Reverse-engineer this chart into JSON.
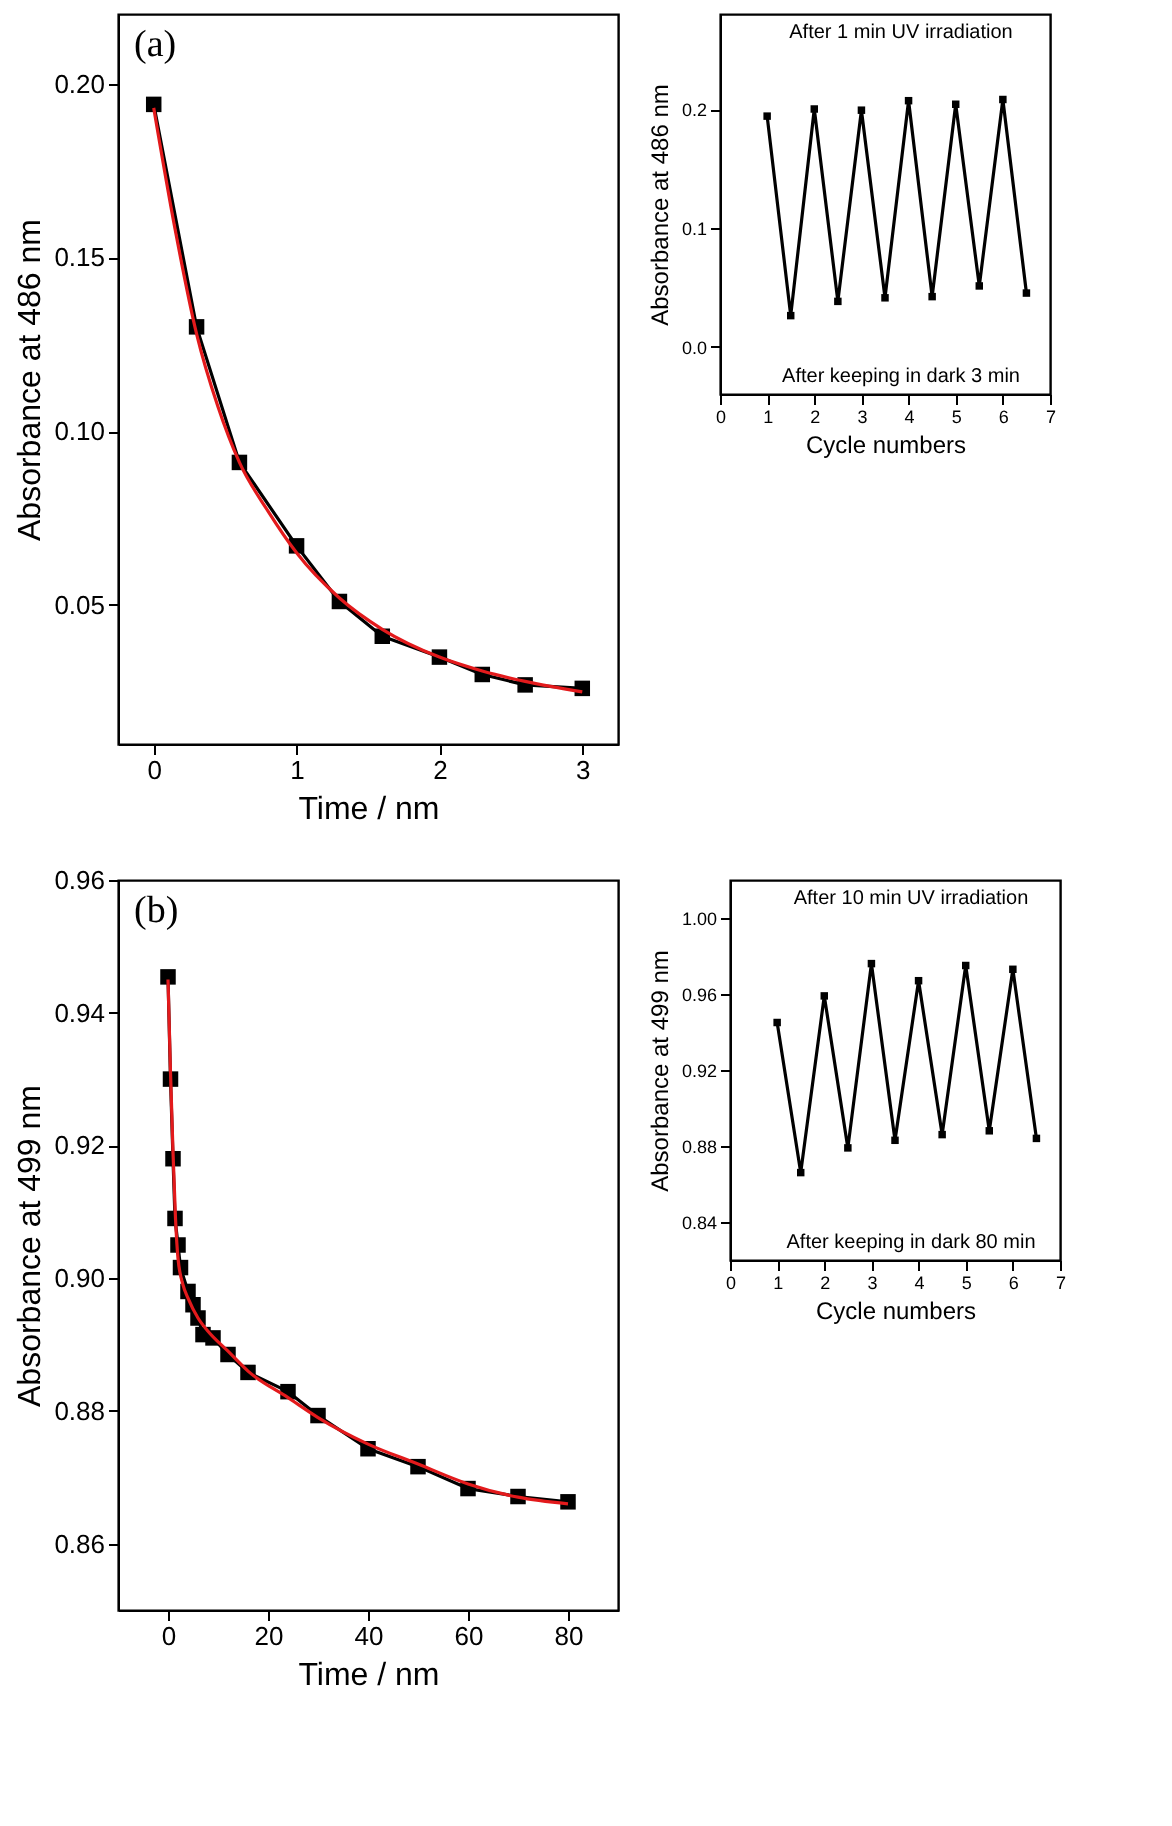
{
  "chart_data": [
    {
      "type": "line",
      "xlabel": "Time / nm",
      "ylabel": "Absorbance at 486 nm",
      "annotations": [
        "(a)"
      ],
      "xlim": [
        -0.25,
        3.25
      ],
      "ylim": [
        0.01,
        0.22
      ],
      "xticks": [
        0,
        1,
        2,
        3
      ],
      "yticks": [
        0.05,
        {
          "value": 0.1,
          "label": "0.10"
        },
        0.15,
        {
          "value": 0.2,
          "label": "0.20"
        }
      ],
      "grid": false,
      "series": [
        {
          "color": "#000000",
          "marker": "square",
          "x": [
            0,
            0.3,
            0.6,
            1.0,
            1.3,
            1.6,
            2.0,
            2.3,
            2.6,
            3.0
          ],
          "values": [
            0.194,
            0.13,
            0.091,
            0.067,
            0.051,
            0.041,
            0.035,
            0.03,
            0.027,
            0.026
          ]
        },
        {
          "color": "#e31a1c",
          "marker": "none",
          "x": [
            0,
            0.15,
            0.3,
            0.45,
            0.6,
            0.8,
            1.0,
            1.3,
            1.6,
            2.0,
            2.3,
            2.6,
            3.0
          ],
          "values": [
            0.193,
            0.158,
            0.128,
            0.107,
            0.091,
            0.077,
            0.065,
            0.052,
            0.043,
            0.035,
            0.031,
            0.028,
            0.025
          ]
        }
      ]
    },
    {
      "type": "line",
      "xlabel": "Cycle numbers",
      "ylabel": "Absorbance at 486 nm",
      "annotations": [
        "After 1 min UV irradiation",
        "After keeping in dark 3 min"
      ],
      "xlim": [
        0,
        7
      ],
      "ylim": [
        -0.04,
        0.28
      ],
      "xticks": [
        0,
        1,
        2,
        3,
        4,
        5,
        6,
        7
      ],
      "yticks": [
        {
          "value": 0,
          "label": "0.0"
        },
        0.1,
        0.2
      ],
      "grid": false,
      "series": [
        {
          "color": "#000000",
          "marker": "square",
          "x": [
            1,
            1.5,
            2,
            2.5,
            3,
            3.5,
            4,
            4.5,
            5,
            5.5,
            6,
            6.5
          ],
          "values": [
            0.194,
            0.026,
            0.2,
            0.038,
            0.199,
            0.041,
            0.207,
            0.042,
            0.204,
            0.051,
            0.208,
            0.045
          ]
        }
      ]
    },
    {
      "type": "line",
      "xlabel": "Time / nm",
      "ylabel": "Absorbance at 499 nm",
      "annotations": [
        "(b)"
      ],
      "xlim": [
        -10,
        90
      ],
      "ylim": [
        0.85,
        0.96
      ],
      "xticks": [
        0,
        20,
        40,
        60,
        80
      ],
      "yticks": [
        0.86,
        0.88,
        {
          "value": 0.9,
          "label": "0.90"
        },
        0.92,
        0.94,
        0.96
      ],
      "grid": false,
      "series": [
        {
          "color": "#000000",
          "marker": "square",
          "x": [
            0,
            0.5,
            1,
            1.4,
            2,
            2.5,
            4,
            5,
            6,
            7,
            9,
            12,
            16,
            24,
            30,
            40,
            50,
            60,
            70,
            80
          ],
          "values": [
            0.9454,
            0.93,
            0.918,
            0.909,
            0.905,
            0.9016,
            0.898,
            0.896,
            0.894,
            0.8915,
            0.891,
            0.8885,
            0.8858,
            0.8829,
            0.8793,
            0.8743,
            0.8716,
            0.8683,
            0.8671,
            0.8663
          ]
        },
        {
          "color": "#e31a1c",
          "marker": "none",
          "x": [
            0,
            0.5,
            1,
            1.5,
            2,
            3,
            4,
            6,
            8,
            12,
            16,
            24,
            30,
            40,
            50,
            60,
            70,
            80
          ],
          "values": [
            0.945,
            0.931,
            0.919,
            0.909,
            0.903,
            0.899,
            0.897,
            0.894,
            0.892,
            0.889,
            0.886,
            0.882,
            0.879,
            0.875,
            0.872,
            0.869,
            0.867,
            0.866
          ]
        }
      ]
    },
    {
      "type": "line",
      "xlabel": "Cycle numbers",
      "ylabel": "Absorbance at 499 nm",
      "annotations": [
        "After 10 min UV irradiation",
        "After keeping in dark 80 min"
      ],
      "xlim": [
        0,
        7
      ],
      "ylim": [
        0.82,
        1.02
      ],
      "xticks": [
        0,
        1,
        2,
        3,
        4,
        5,
        6,
        7
      ],
      "yticks": [
        0.84,
        0.88,
        0.92,
        0.96,
        {
          "value": 1.0,
          "label": "1.00"
        }
      ],
      "grid": false,
      "series": [
        {
          "color": "#000000",
          "marker": "square",
          "x": [
            1,
            1.5,
            2,
            2.5,
            3,
            3.5,
            4,
            4.5,
            5,
            5.5,
            6,
            6.5
          ],
          "values": [
            0.945,
            0.866,
            0.959,
            0.879,
            0.976,
            0.883,
            0.967,
            0.886,
            0.975,
            0.888,
            0.973,
            0.884
          ]
        }
      ]
    }
  ]
}
